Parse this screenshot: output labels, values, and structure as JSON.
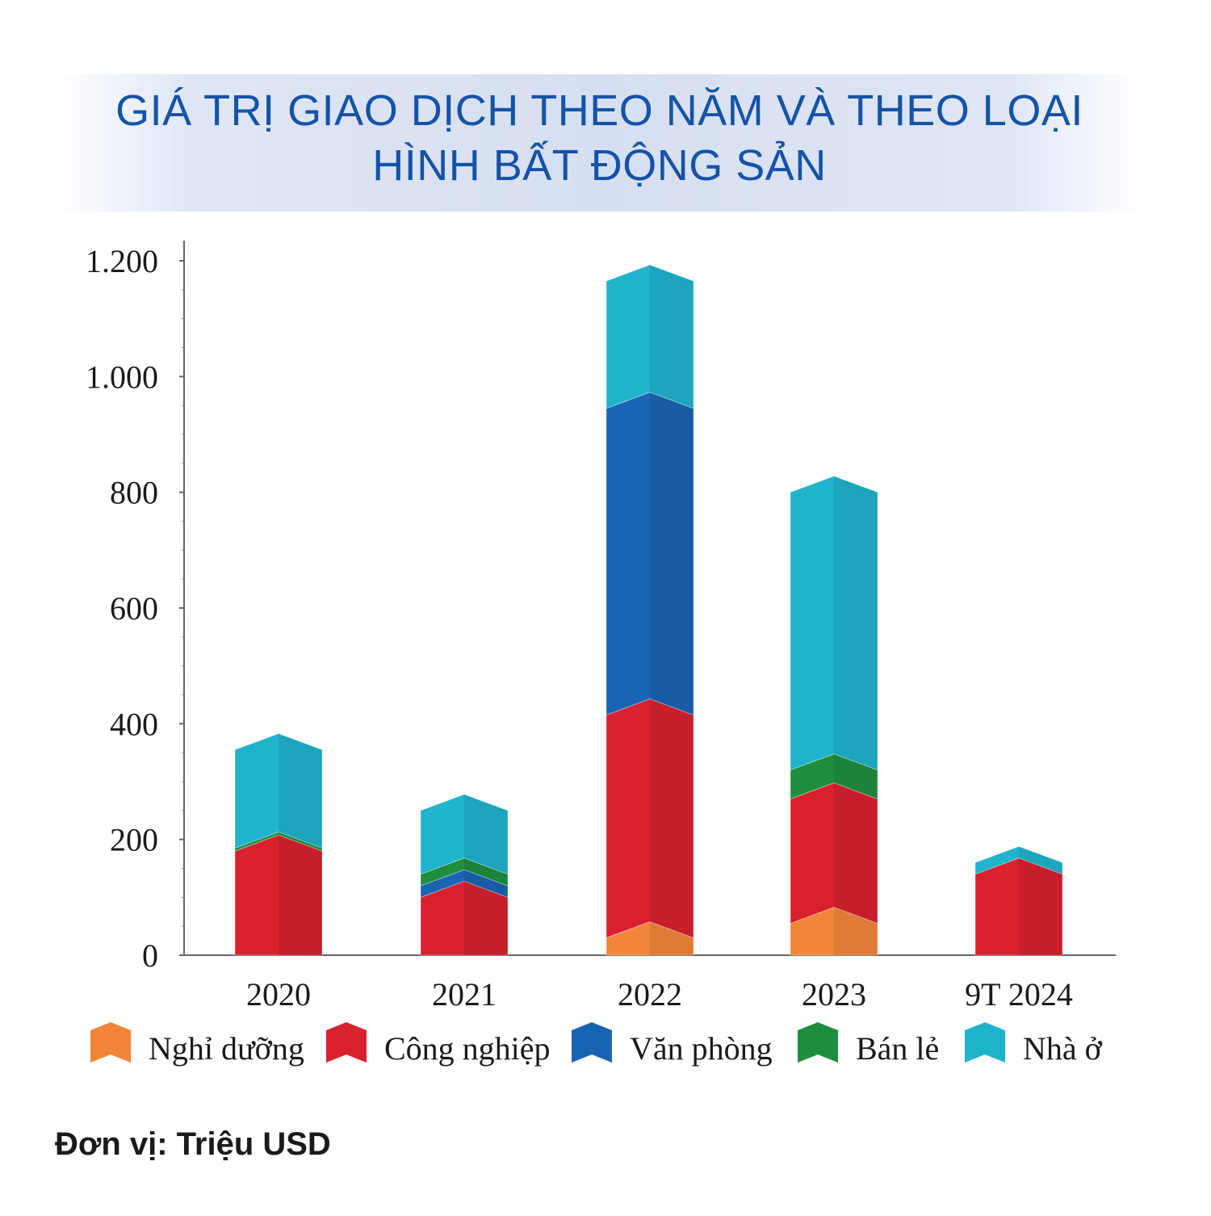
{
  "title": {
    "line1": "GIÁ TRỊ GIAO DỊCH THEO NĂM VÀ THEO LOẠI",
    "line2": "HÌNH BẤT ĐỘNG SẢN"
  },
  "unit_label": "Đơn vị: Triệu USD",
  "chart_data": {
    "type": "bar",
    "stacked": true,
    "title": "GIÁ TRỊ GIAO DỊCH THEO NĂM VÀ THEO LOẠI HÌNH BẤT ĐỘNG SẢN",
    "xlabel": "",
    "ylabel": "",
    "unit": "Triệu USD",
    "ylim": [
      0,
      1200
    ],
    "yticks": [
      0,
      200,
      400,
      600,
      800,
      1000,
      1200
    ],
    "ytick_labels": [
      "0",
      "200",
      "400",
      "600",
      "800",
      "1.000",
      "1.200"
    ],
    "categories": [
      "2020",
      "2021",
      "2022",
      "2023",
      "9T 2024"
    ],
    "series": [
      {
        "name": "Nghỉ dưỡng",
        "color": "#f2853a",
        "values": [
          0,
          0,
          30,
          55,
          0
        ]
      },
      {
        "name": "Công nghiệp",
        "color": "#d9202f",
        "values": [
          180,
          100,
          385,
          215,
          140
        ]
      },
      {
        "name": "Văn phòng",
        "color": "#1a64b4",
        "values": [
          0,
          20,
          530,
          0,
          0
        ]
      },
      {
        "name": "Bán lẻ",
        "color": "#1e8e3e",
        "values": [
          5,
          20,
          0,
          50,
          0
        ]
      },
      {
        "name": "Nhà ở",
        "color": "#1fb4cc",
        "values": [
          170,
          110,
          220,
          480,
          20
        ]
      }
    ],
    "grid": false,
    "legend_position": "bottom"
  }
}
